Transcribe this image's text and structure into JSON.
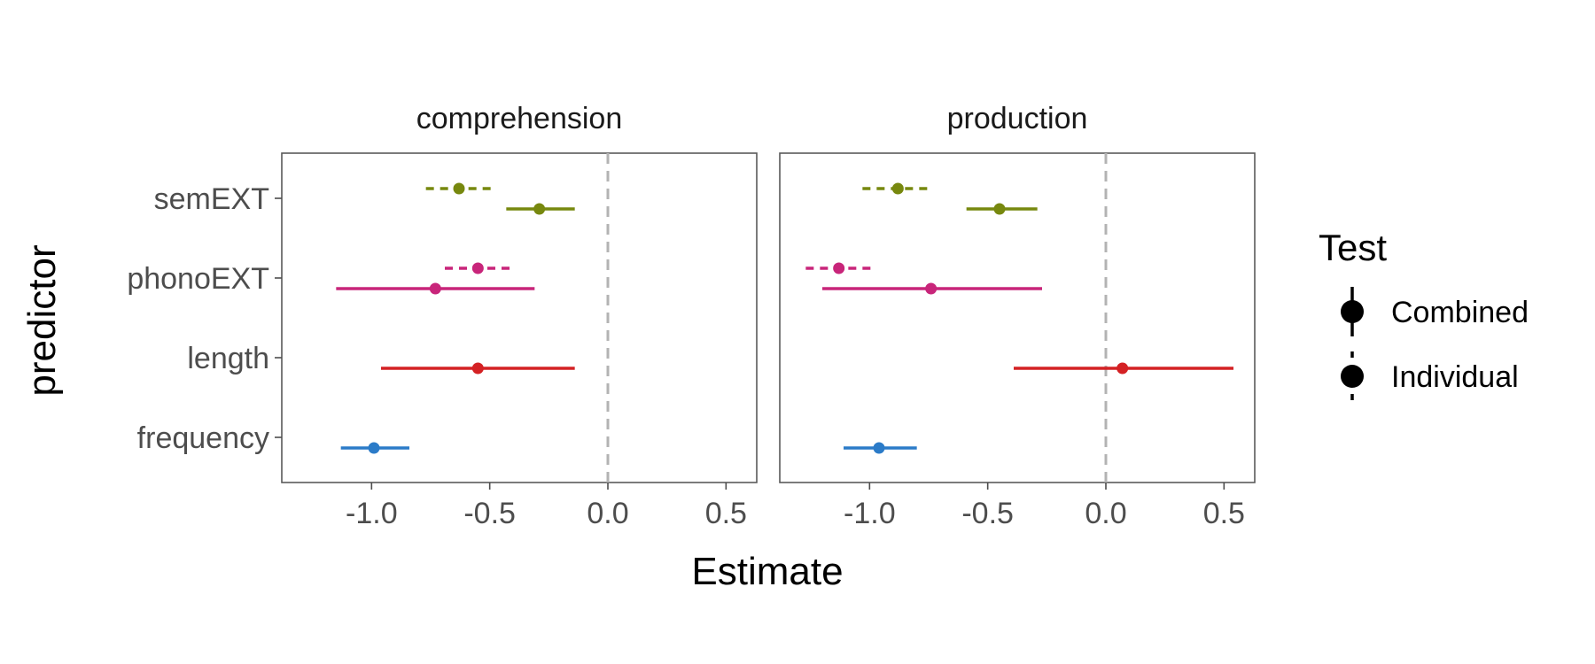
{
  "chart_data": {
    "type": "scatter",
    "subtype": "coefficient-plot",
    "xlabel": "Estimate",
    "ylabel": "predictor",
    "xlim": [
      -1.38,
      0.63
    ],
    "xticks": [
      -1.0,
      -0.5,
      0.0,
      0.5
    ],
    "xtick_labels": [
      "-1.0",
      "-0.5",
      "0.0",
      "0.5"
    ],
    "reference_line": 0.0,
    "grid": false,
    "predictors": [
      "semEXT",
      "phonoEXT",
      "length",
      "frequency"
    ],
    "predictor_colors": {
      "semEXT": "#77880e",
      "phonoEXT": "#c8257a",
      "length": "#d42124",
      "frequency": "#2b7bc8"
    },
    "legend": {
      "title": "Test",
      "position": "right",
      "entries": [
        {
          "label": "Combined",
          "linetype": "solid"
        },
        {
          "label": "Individual",
          "linetype": "dashed"
        }
      ]
    },
    "panels": [
      {
        "title": "comprehension",
        "points": [
          {
            "predictor": "semEXT",
            "test": "Individual",
            "estimate": -0.63,
            "low": -0.77,
            "high": -0.48
          },
          {
            "predictor": "semEXT",
            "test": "Combined",
            "estimate": -0.29,
            "low": -0.43,
            "high": -0.14
          },
          {
            "predictor": "phonoEXT",
            "test": "Individual",
            "estimate": -0.55,
            "low": -0.69,
            "high": -0.41
          },
          {
            "predictor": "phonoEXT",
            "test": "Combined",
            "estimate": -0.73,
            "low": -1.15,
            "high": -0.31
          },
          {
            "predictor": "length",
            "test": "Combined",
            "estimate": -0.55,
            "low": -0.96,
            "high": -0.14
          },
          {
            "predictor": "frequency",
            "test": "Combined",
            "estimate": -0.99,
            "low": -1.13,
            "high": -0.84
          }
        ]
      },
      {
        "title": "production",
        "points": [
          {
            "predictor": "semEXT",
            "test": "Individual",
            "estimate": -0.88,
            "low": -1.03,
            "high": -0.73
          },
          {
            "predictor": "semEXT",
            "test": "Combined",
            "estimate": -0.45,
            "low": -0.59,
            "high": -0.29
          },
          {
            "predictor": "phonoEXT",
            "test": "Individual",
            "estimate": -1.13,
            "low": -1.27,
            "high": -0.98
          },
          {
            "predictor": "phonoEXT",
            "test": "Combined",
            "estimate": -0.74,
            "low": -1.2,
            "high": -0.27
          },
          {
            "predictor": "length",
            "test": "Combined",
            "estimate": 0.07,
            "low": -0.39,
            "high": 0.54
          },
          {
            "predictor": "frequency",
            "test": "Combined",
            "estimate": -0.96,
            "low": -1.11,
            "high": -0.8
          }
        ]
      }
    ]
  }
}
